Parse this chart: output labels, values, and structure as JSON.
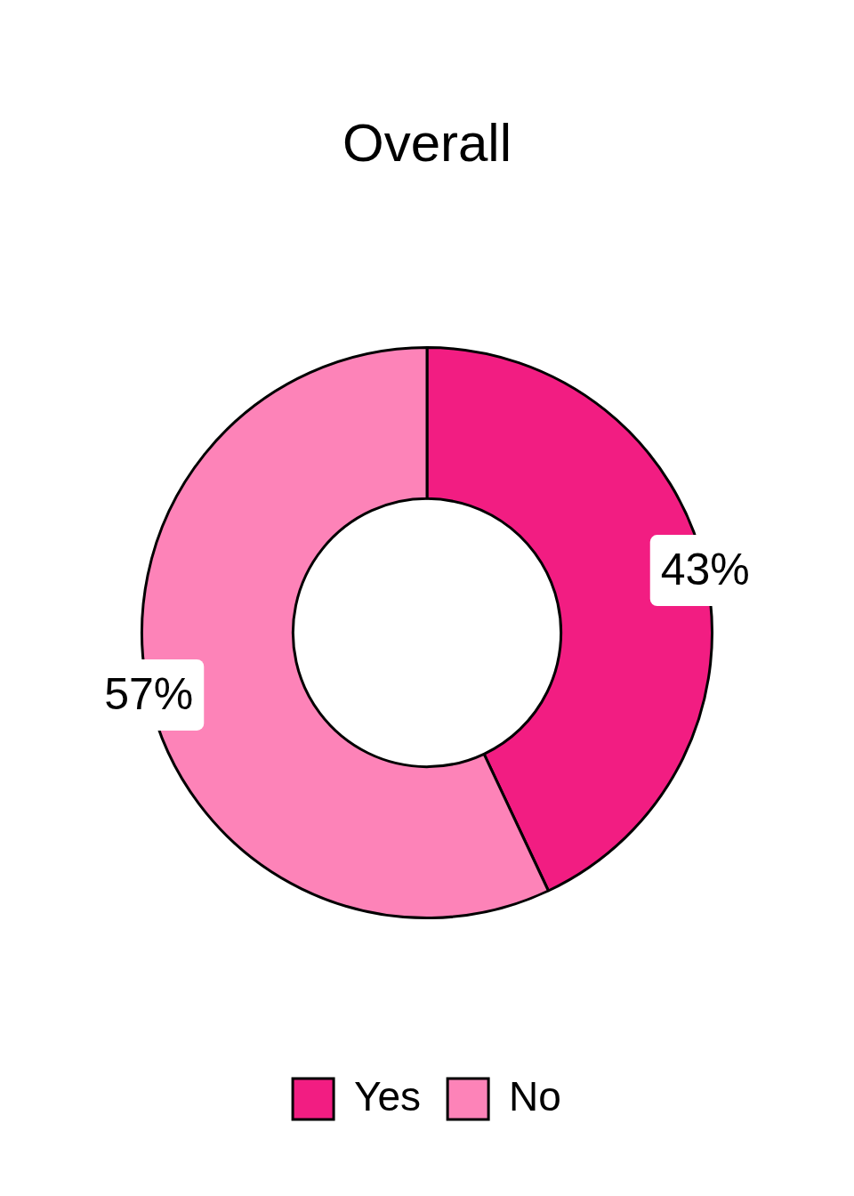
{
  "chart_data": {
    "type": "donut",
    "title": "Overall",
    "categories": [
      "Yes",
      "No"
    ],
    "values": [
      43,
      57
    ],
    "colors": [
      "#f21d82",
      "#fd83b8"
    ],
    "value_labels": [
      "43%",
      "57%"
    ],
    "legend": "bottom"
  }
}
